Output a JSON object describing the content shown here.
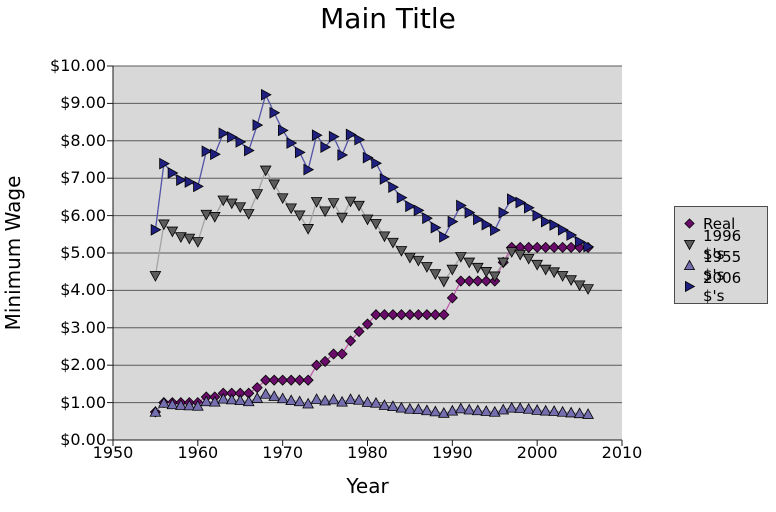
{
  "chart_data": {
    "type": "line",
    "title": "Main Title",
    "xlabel": "Year",
    "ylabel": "Minimum Wage",
    "xlim": [
      1950,
      2010
    ],
    "ylim": [
      0,
      10
    ],
    "grid": "horizontal",
    "legend_position": "right",
    "x_ticks": [
      {
        "value": 1950,
        "label": "1950"
      },
      {
        "value": 1960,
        "label": "1960"
      },
      {
        "value": 1970,
        "label": "1970"
      },
      {
        "value": 1980,
        "label": "1980"
      },
      {
        "value": 1990,
        "label": "1990"
      },
      {
        "value": 2000,
        "label": "2000"
      },
      {
        "value": 2010,
        "label": "2010"
      }
    ],
    "y_ticks": [
      {
        "value": 0,
        "label": "$0.00"
      },
      {
        "value": 1,
        "label": "$1.00"
      },
      {
        "value": 2,
        "label": "$2.00"
      },
      {
        "value": 3,
        "label": "$3.00"
      },
      {
        "value": 4,
        "label": "$4.00"
      },
      {
        "value": 5,
        "label": "$5.00"
      },
      {
        "value": 6,
        "label": "$6.00"
      },
      {
        "value": 7,
        "label": "$7.00"
      },
      {
        "value": 8,
        "label": "$8.00"
      },
      {
        "value": 9,
        "label": "$9.00"
      },
      {
        "value": 10,
        "label": "$10.00"
      }
    ],
    "colors": {
      "plot_bg": "#d8d8d8",
      "grid": "#5a5a5a",
      "axis": "#1a1a1a",
      "marker_edge": "#000000",
      "legend_bg": "#d8d8d8",
      "legend_border": "#4d4d4d",
      "text": "#000000",
      "page_bg": "#ffffff"
    },
    "x": [
      1955,
      1956,
      1957,
      1958,
      1959,
      1960,
      1961,
      1962,
      1963,
      1964,
      1965,
      1966,
      1967,
      1968,
      1969,
      1970,
      1971,
      1972,
      1973,
      1974,
      1975,
      1976,
      1977,
      1978,
      1979,
      1980,
      1981,
      1982,
      1983,
      1984,
      1985,
      1986,
      1987,
      1988,
      1989,
      1990,
      1991,
      1992,
      1993,
      1994,
      1995,
      1996,
      1997,
      1998,
      1999,
      2000,
      2001,
      2002,
      2003,
      2004,
      2005,
      2006
    ],
    "series": [
      {
        "name": "Real",
        "marker": "diamond",
        "marker_color": "#6a0d6a",
        "line_color": "#c05ab0",
        "values": [
          0.75,
          1.0,
          1.0,
          1.0,
          1.0,
          1.0,
          1.15,
          1.15,
          1.25,
          1.25,
          1.25,
          1.25,
          1.4,
          1.6,
          1.6,
          1.6,
          1.6,
          1.6,
          1.6,
          2.0,
          2.1,
          2.3,
          2.3,
          2.65,
          2.9,
          3.1,
          3.35,
          3.35,
          3.35,
          3.35,
          3.35,
          3.35,
          3.35,
          3.35,
          3.35,
          3.8,
          4.25,
          4.25,
          4.25,
          4.25,
          4.25,
          4.75,
          5.15,
          5.15,
          5.15,
          5.15,
          5.15,
          5.15,
          5.15,
          5.15,
          5.15,
          5.15
        ]
      },
      {
        "name": "1996 $'s",
        "marker": "triangle-down",
        "marker_color": "#5c5c5c",
        "line_color": "#a3a3a3",
        "values": [
          4.39,
          5.77,
          5.58,
          5.43,
          5.39,
          5.3,
          6.03,
          5.97,
          6.41,
          6.33,
          6.23,
          6.05,
          6.58,
          7.21,
          6.84,
          6.47,
          6.2,
          6.01,
          5.65,
          6.37,
          6.12,
          6.34,
          5.95,
          6.38,
          6.27,
          5.9,
          5.78,
          5.45,
          5.28,
          5.06,
          4.88,
          4.8,
          4.63,
          4.44,
          4.24,
          4.56,
          4.9,
          4.75,
          4.61,
          4.5,
          4.38,
          4.75,
          5.03,
          4.96,
          4.85,
          4.69,
          4.56,
          4.49,
          4.39,
          4.28,
          4.14,
          4.04
        ]
      },
      {
        "name": "1955 $'s",
        "marker": "triangle-up",
        "marker_color": "#756fb0",
        "line_color": "#9b98b8",
        "values": [
          0.75,
          0.99,
          0.95,
          0.93,
          0.92,
          0.91,
          1.03,
          1.02,
          1.1,
          1.08,
          1.06,
          1.03,
          1.12,
          1.23,
          1.17,
          1.11,
          1.06,
          1.03,
          0.97,
          1.09,
          1.05,
          1.08,
          1.02,
          1.09,
          1.07,
          1.01,
          0.99,
          0.93,
          0.9,
          0.86,
          0.83,
          0.82,
          0.79,
          0.76,
          0.72,
          0.78,
          0.84,
          0.81,
          0.79,
          0.77,
          0.75,
          0.81,
          0.86,
          0.85,
          0.83,
          0.8,
          0.78,
          0.77,
          0.75,
          0.73,
          0.71,
          0.69
        ]
      },
      {
        "name": "2006 $'s",
        "marker": "triangle-right",
        "marker_color": "#1f1f80",
        "line_color": "#5353a8",
        "values": [
          5.62,
          7.39,
          7.14,
          6.95,
          6.9,
          6.78,
          7.72,
          7.64,
          8.2,
          8.1,
          7.97,
          7.74,
          8.42,
          9.23,
          8.75,
          8.28,
          7.94,
          7.69,
          7.23,
          8.15,
          7.83,
          8.11,
          7.62,
          8.17,
          8.03,
          7.55,
          7.4,
          6.98,
          6.76,
          6.48,
          6.25,
          6.14,
          5.93,
          5.68,
          5.43,
          5.84,
          6.27,
          6.08,
          5.9,
          5.76,
          5.61,
          6.08,
          6.44,
          6.35,
          6.21,
          6.0,
          5.84,
          5.75,
          5.62,
          5.48,
          5.3,
          5.17
        ]
      }
    ]
  }
}
